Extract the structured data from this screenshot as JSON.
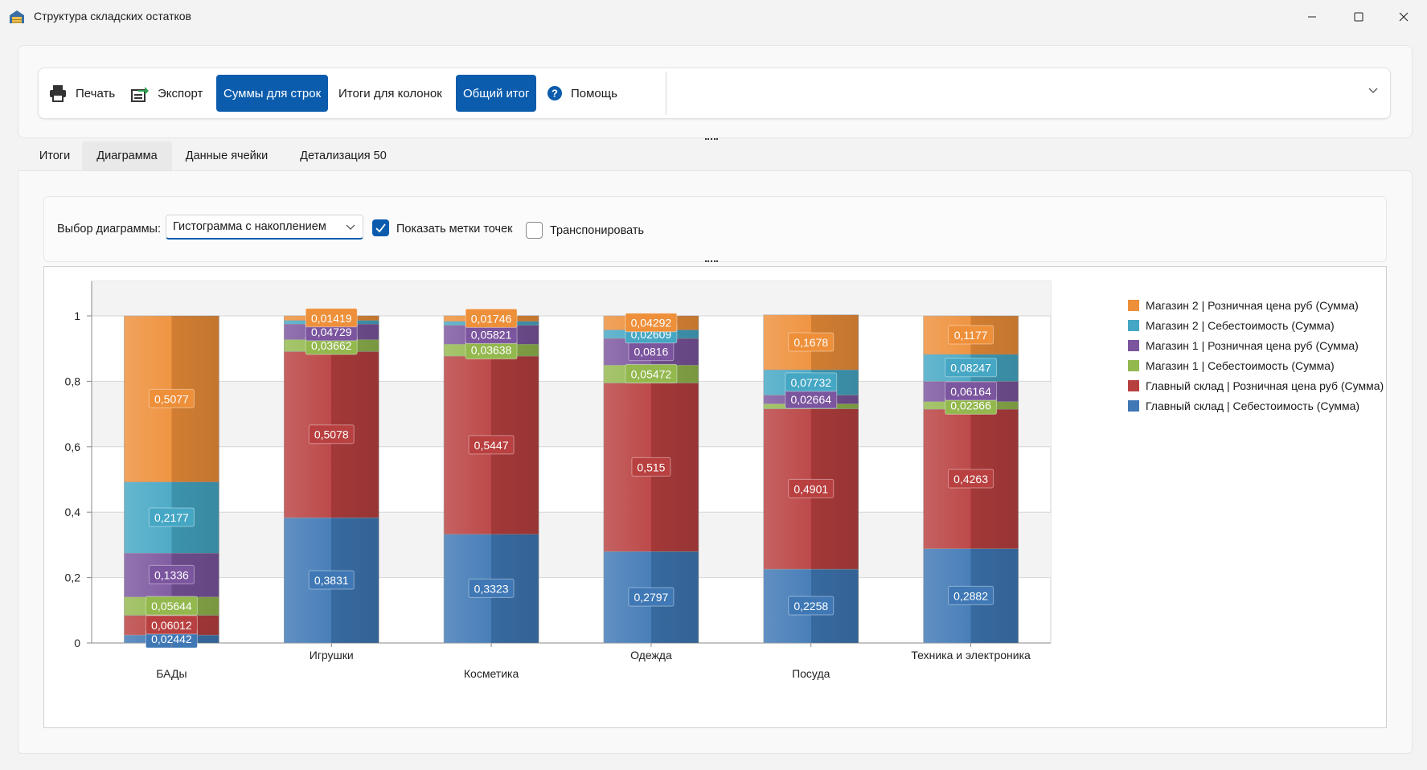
{
  "window": {
    "title": "Структура складских остатков"
  },
  "toolbar": {
    "print_label": "Печать",
    "export_label": "Экспорт",
    "row_sums_label": "Суммы для строк",
    "col_totals_label": "Итоги для колонок",
    "grand_total_label": "Общий итог",
    "help_label": "Помощь"
  },
  "tabs": [
    {
      "label": "Итоги",
      "active": false
    },
    {
      "label": "Диаграмма",
      "active": true
    },
    {
      "label": "Данные ячейки",
      "active": false
    },
    {
      "label": "Детализация 50",
      "active": false
    }
  ],
  "options": {
    "chart_select_label": "Выбор диаграммы:",
    "chart_select_value": "Гистограмма с накоплением",
    "show_labels_label": "Показать метки точек",
    "show_labels_checked": true,
    "transpose_label": "Транспонировать",
    "transpose_checked": false
  },
  "chart_data": {
    "type": "bar",
    "stacked": true,
    "categories": [
      "БАДы",
      "Игрушки",
      "Косметика",
      "Одежда",
      "Посуда",
      "Техника и электроника"
    ],
    "ylim": [
      0,
      1
    ],
    "yticks": [
      "0",
      "0,2",
      "0,4",
      "0,6",
      "0,8",
      "1"
    ],
    "grid": true,
    "legend_position": "right",
    "series": [
      {
        "name": "Главный склад | Себестоимость (Сумма)",
        "color": "#3f78b5",
        "values": [
          0.02442,
          0.3831,
          0.3323,
          0.2797,
          0.2258,
          0.2882
        ],
        "labels": [
          "0,02442",
          "0,3831",
          "0,3323",
          "0,2797",
          "0,2258",
          "0,2882"
        ]
      },
      {
        "name": "Главный склад | Розничная цена руб (Сумма)",
        "color": "#b94040",
        "values": [
          0.06012,
          0.5078,
          0.5447,
          0.515,
          0.4901,
          0.4263
        ],
        "labels": [
          "0,06012",
          "0,5078",
          "0,5447",
          "0,515",
          "0,4901",
          "0,4263"
        ]
      },
      {
        "name": "Магазин 1 | Себестоимость (Сумма)",
        "color": "#93b84e",
        "values": [
          0.05644,
          0.03662,
          0.03638,
          0.05472,
          0.01528,
          0.02366
        ],
        "labels": [
          "0,05644",
          "0,03662",
          "0,03638",
          "0,05472",
          "",
          "0,02366"
        ]
      },
      {
        "name": "Магазин 1 | Розничная цена руб (Сумма)",
        "color": "#7b559e",
        "values": [
          0.1336,
          0.04729,
          0.05821,
          0.0816,
          0.02664,
          0.06164
        ],
        "labels": [
          "0,1336",
          "0,04729",
          "0,05821",
          "0,0816",
          "0,02664",
          "0,06164"
        ]
      },
      {
        "name": "Магазин 2 | Себестоимость (Сумма)",
        "color": "#45a7c4",
        "values": [
          0.2177,
          0.0112,
          0.01145,
          0.02609,
          0.07732,
          0.08247
        ],
        "labels": [
          "0,2177",
          "",
          "",
          "0,02609",
          "0,07732",
          "0,08247"
        ]
      },
      {
        "name": "Магазин 2 | Розничная цена руб (Сумма)",
        "color": "#ee8f39",
        "values": [
          0.5077,
          0.01419,
          0.01746,
          0.04292,
          0.1678,
          0.1177
        ],
        "labels": [
          "0,5077",
          "0,01419",
          "0,01746",
          "0,04292",
          "0,1678",
          "0,1177"
        ]
      }
    ]
  }
}
